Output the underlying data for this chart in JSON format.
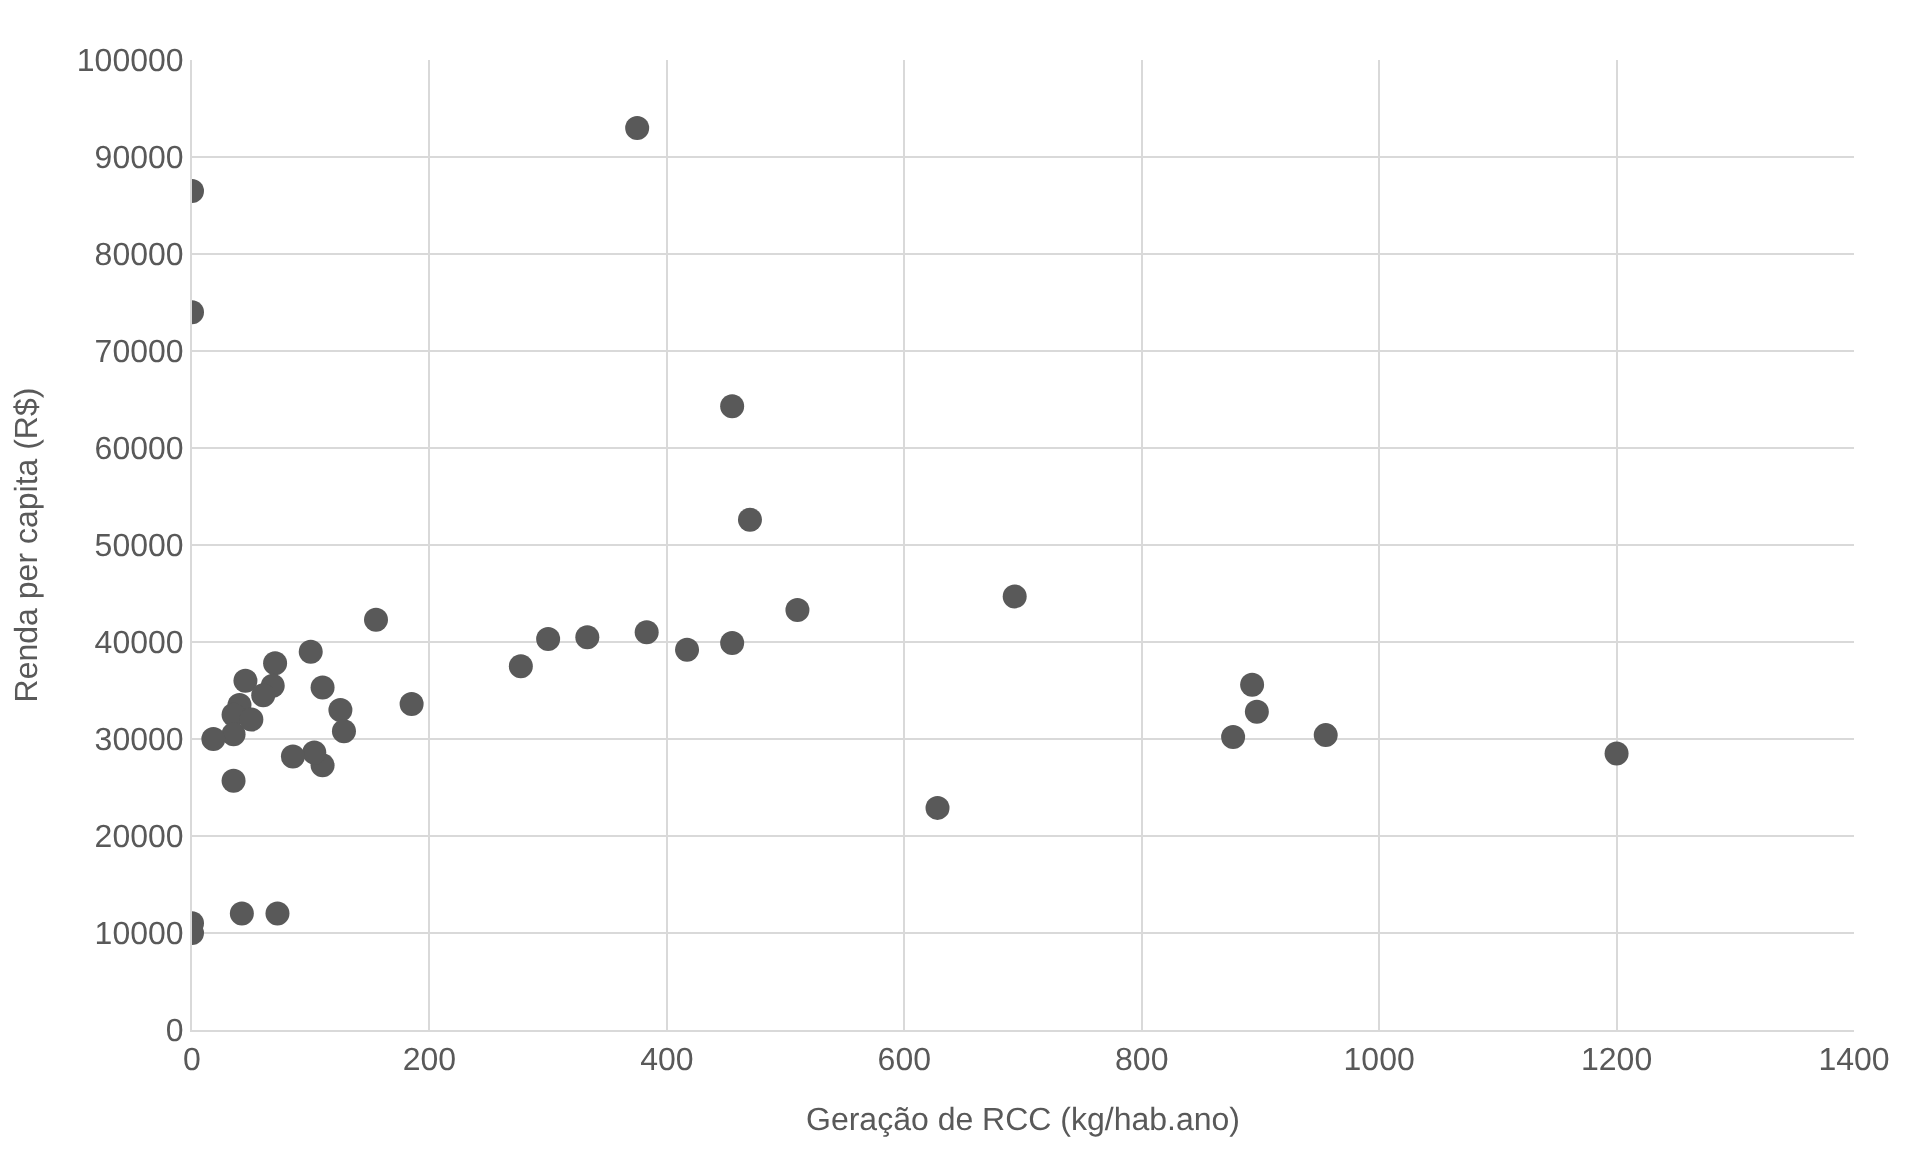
{
  "chart_data": {
    "type": "scatter",
    "xlabel": "Geração de RCC (kg/hab.ano)",
    "ylabel": "Renda per capita (R$)",
    "x": [
      0,
      0,
      375,
      455,
      470,
      510,
      693,
      628,
      1200,
      955,
      877,
      893,
      897,
      455,
      417,
      383,
      333,
      300,
      277,
      185,
      155,
      100,
      110,
      120,
      125,
      128,
      110,
      103,
      85,
      70,
      68,
      55,
      50,
      45,
      40,
      35,
      35,
      18,
      35,
      42,
      72,
      0,
      0,
      60,
      50
    ],
    "series": [
      {
        "color": "#595959",
        "values": [
          86500,
          74000,
          93000,
          64300,
          52600,
          43300,
          44700,
          22900,
          28500,
          30400,
          30200,
          35600,
          32800,
          39900,
          39200,
          41000,
          40500,
          40300,
          37500,
          33600,
          42300,
          39000,
          35300,
          null,
          33000,
          30800,
          27300,
          28600,
          28200,
          37800,
          35500,
          null,
          null,
          36000,
          33500,
          32500,
          30500,
          30000,
          25700,
          12000,
          12000,
          11000,
          10000,
          34500,
          32000
        ]
      }
    ],
    "xlim": [
      0,
      1400
    ],
    "xticks": [
      0,
      200,
      400,
      600,
      800,
      1000,
      1200,
      1400
    ],
    "ylim": [
      0,
      100000
    ],
    "yticks": [
      0,
      10000,
      20000,
      30000,
      40000,
      50000,
      60000,
      70000,
      80000,
      90000,
      100000
    ],
    "grid": true,
    "marker": "circle"
  }
}
